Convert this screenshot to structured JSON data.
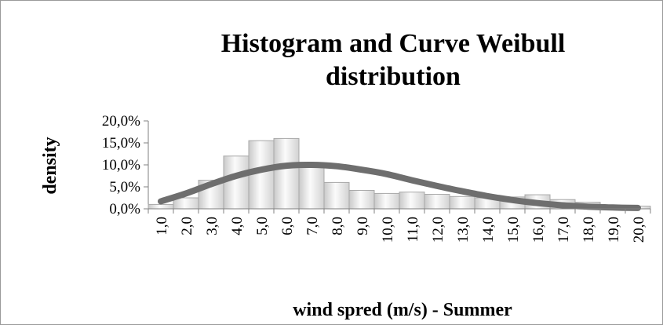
{
  "chart_data": {
    "type": "bar",
    "title_line1": "Histogram and  Curve Weibull",
    "title_line2": "distribution",
    "xlabel": "wind spred (m/s) - Summer",
    "ylabel": "density",
    "categories": [
      "1,0",
      "2,0",
      "3,0",
      "4,0",
      "5,0",
      "6,0",
      "7,0",
      "8,0",
      "9,0",
      "10,0",
      "11,0",
      "12,0",
      "13,0",
      "14,0",
      "15,0",
      "16,0",
      "17,0",
      "18,0",
      "19,0",
      "20,0"
    ],
    "ytick_labels": [
      "0,0%",
      "5,0%",
      "10,0%",
      "15,0%",
      "20,0%"
    ],
    "ylim": [
      0,
      20
    ],
    "yticks": [
      0,
      5,
      10,
      15,
      20
    ],
    "series": [
      {
        "type": "bar",
        "values": [
          1.0,
          2.5,
          6.5,
          12.0,
          15.5,
          16.0,
          9.5,
          6.0,
          4.2,
          3.5,
          3.8,
          3.3,
          2.8,
          2.5,
          2.7,
          3.2,
          2.1,
          1.5,
          0.8,
          0.6
        ]
      },
      {
        "type": "line",
        "x": [
          1.0,
          2.0,
          3.0,
          4.0,
          5.0,
          6.0,
          7.0,
          8.0,
          9.0,
          10.0,
          11.0,
          12.0,
          13.0,
          14.0,
          15.0,
          16.0,
          17.0,
          18.0,
          19.0,
          20.0
        ],
        "values": [
          1.7,
          3.5,
          5.6,
          7.5,
          8.9,
          9.8,
          10.0,
          9.7,
          8.9,
          7.9,
          6.5,
          5.2,
          4.0,
          2.9,
          2.0,
          1.3,
          0.8,
          0.5,
          0.3,
          0.2
        ]
      }
    ],
    "grid": false,
    "legend": "none",
    "colors": {
      "bar_fill": "#e6e6e6",
      "bar_edge": "#a8a8a8",
      "curve": "#6e6e6e",
      "axis": "#808080"
    }
  }
}
